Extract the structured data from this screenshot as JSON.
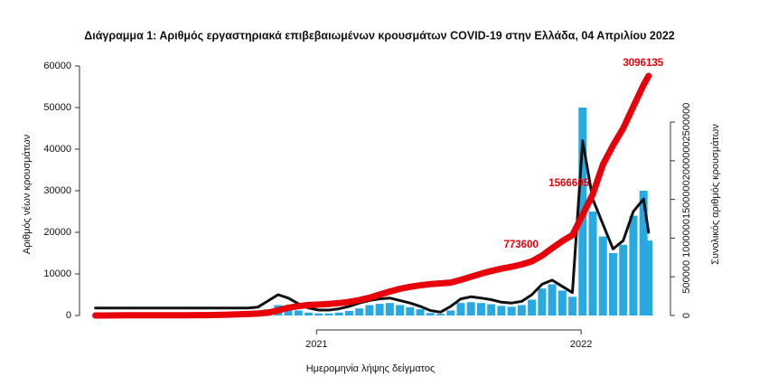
{
  "chart_data": {
    "type": "bar",
    "title": "Διάγραμμα 1: Αριθμός εργαστηριακά επιβεβαιωμένων κρουσμάτων COVID-19 στην Ελλάδα, 04 Απριλίου 2022",
    "xlabel": "Ημερομηνία λήψης δείγματος",
    "ylabel": "Αριθμός νέων κρουσμάτων",
    "y2label": "Συνολικός αριθμός κρουσμάτων",
    "x": [
      "2020-03-02",
      "2020-03-16",
      "2020-03-30",
      "2020-04-13",
      "2020-04-27",
      "2020-05-11",
      "2020-05-25",
      "2020-06-08",
      "2020-06-22",
      "2020-07-06",
      "2020-07-20",
      "2020-08-03",
      "2020-08-17",
      "2020-08-31",
      "2020-09-14",
      "2020-09-28",
      "2020-10-12",
      "2020-10-26",
      "2020-11-09",
      "2020-11-23",
      "2020-12-07",
      "2020-12-21",
      "2021-01-04",
      "2021-01-18",
      "2021-02-01",
      "2021-02-15",
      "2021-03-01",
      "2021-03-15",
      "2021-03-29",
      "2021-04-12",
      "2021-04-26",
      "2021-05-10",
      "2021-05-24",
      "2021-06-07",
      "2021-06-21",
      "2021-07-05",
      "2021-07-19",
      "2021-08-02",
      "2021-08-16",
      "2021-08-30",
      "2021-09-13",
      "2021-09-27",
      "2021-10-11",
      "2021-10-25",
      "2021-11-08",
      "2021-11-22",
      "2021-12-06",
      "2021-12-20",
      "2022-01-03",
      "2022-01-17",
      "2022-01-31",
      "2022-02-14",
      "2022-02-28",
      "2022-03-14",
      "2022-03-28",
      "2022-04-04"
    ],
    "series": [
      {
        "type": "bar",
        "color": "#29a9e1",
        "values": [
          20,
          60,
          80,
          40,
          15,
          10,
          5,
          10,
          15,
          20,
          30,
          90,
          230,
          200,
          300,
          350,
          450,
          1500,
          2500,
          2000,
          1200,
          700,
          500,
          500,
          700,
          1100,
          1700,
          2500,
          2800,
          3000,
          2500,
          2000,
          1500,
          600,
          400,
          1200,
          3000,
          3200,
          3000,
          2700,
          2300,
          2100,
          2500,
          3800,
          6500,
          7500,
          6000,
          4500,
          50000,
          25000,
          19000,
          15000,
          17000,
          24000,
          30000,
          18000
        ]
      },
      {
        "type": "line",
        "color": "#111111",
        "values": [
          1800,
          1800,
          1800,
          1800,
          1800,
          1800,
          1800,
          1800,
          1800,
          1800,
          1800,
          1800,
          1800,
          1800,
          1800,
          1800,
          2000,
          3500,
          5000,
          4200,
          2800,
          1800,
          1300,
          1300,
          1600,
          2200,
          3000,
          3600,
          4000,
          4200,
          3600,
          3000,
          2200,
          1200,
          800,
          2200,
          4000,
          4500,
          4200,
          3800,
          3200,
          3000,
          3400,
          5000,
          7500,
          8500,
          7000,
          5500,
          42000,
          28000,
          22000,
          16000,
          18000,
          25000,
          28000,
          20000
        ]
      },
      {
        "type": "line",
        "axis": "y2",
        "color": "#e8000b",
        "values": [
          0,
          300,
          1300,
          2200,
          2600,
          2800,
          2900,
          3100,
          3300,
          3600,
          4100,
          5000,
          7500,
          10500,
          14000,
          18500,
          24000,
          36000,
          65000,
          100000,
          120000,
          135000,
          141000,
          150000,
          160000,
          175000,
          200000,
          230000,
          270000,
          310000,
          345000,
          370000,
          390000,
          405000,
          415000,
          425000,
          460000,
          500000,
          540000,
          575000,
          605000,
          630000,
          660000,
          700000,
          773600,
          870000,
          960000,
          1040000,
          1300000,
          1566605,
          1950000,
          2200000,
          2420000,
          2700000,
          2980000,
          3096135
        ]
      }
    ],
    "annotations": [
      "773600",
      "1566605",
      "3096135"
    ],
    "xlim": [
      "2020-02-24",
      "2022-04-08"
    ],
    "xticks": [
      {
        "value": "2021-01-01",
        "label": "2021"
      },
      {
        "value": "2022-01-01",
        "label": "2022"
      }
    ],
    "ylim": [
      0,
      60000
    ],
    "yticks": [
      0,
      10000,
      20000,
      30000,
      40000,
      50000,
      60000
    ],
    "y2lim": [
      0,
      3225000
    ],
    "y2ticks": [
      0,
      500000,
      1000000,
      1500000,
      2000000,
      2500000
    ]
  }
}
